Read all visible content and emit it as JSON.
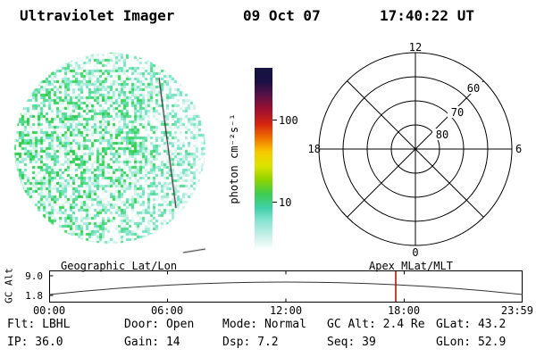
{
  "header": {
    "title": "Ultraviolet Imager",
    "date": "09 Oct 07",
    "time": "17:40:22 UT"
  },
  "disk": {
    "palette": [
      "#ffffff",
      "#eefaf6",
      "#d2f3ea",
      "#a4ebd8",
      "#74e2c2",
      "#55da92",
      "#3cd45e",
      "#2fca4a"
    ],
    "line_color": "#1a1a1a"
  },
  "colorbar": {
    "label": "photon cm⁻²s⁻¹",
    "tick_top": "100",
    "tick_bottom": "10",
    "stops": [
      "#14143f",
      "#1a1045",
      "#5c1145",
      "#a01030",
      "#d42410",
      "#f07000",
      "#f8c800",
      "#dce400",
      "#8ed400",
      "#3fcc50",
      "#3ed0a8",
      "#8fe4d4",
      "#c8f0e8",
      "#ffffff"
    ]
  },
  "polar": {
    "hour_top": "12",
    "hour_left": "18",
    "hour_right": "6",
    "hour_bottom": "0",
    "lat_60": "60",
    "lat_70": "70",
    "lat_80": "80"
  },
  "ephemeris": {
    "left_title": "Geographic Lat/Lon",
    "right_title": "Apex MLat/MLT",
    "y_label": "GC Alt",
    "y_tick_top": "9.0",
    "y_tick_bottom": "1.8",
    "x_ticks": [
      "00:00",
      "06:00",
      "12:00",
      "18:00",
      "23:59"
    ],
    "marker_color": "#bb0000"
  },
  "status": {
    "row1": [
      "Flt: LBHL",
      "Door: Open",
      "Mode: Normal",
      "GC Alt: 2.4 Re",
      "GLat: 43.2"
    ],
    "row2": [
      "IP: 36.0",
      "Gain: 14",
      "Dsp: 7.2",
      "Seq: 39",
      "GLon: 52.9"
    ]
  }
}
